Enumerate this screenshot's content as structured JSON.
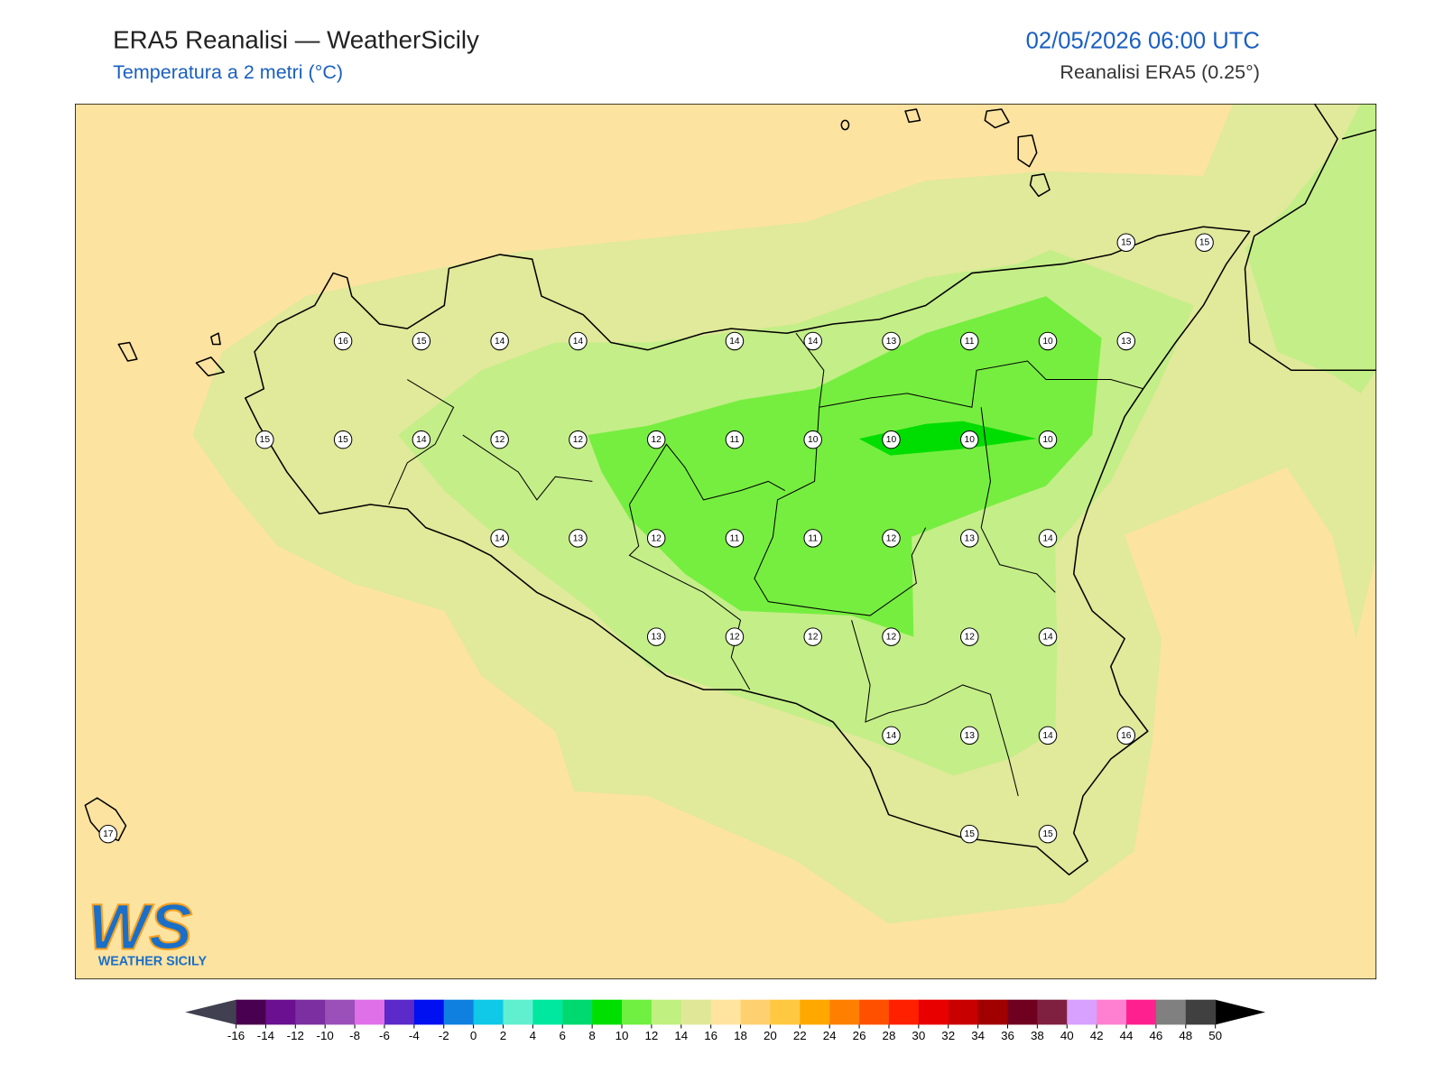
{
  "header": {
    "title": "ERA5 Reanalisi — WeatherSicily",
    "subtitle": "Temperatura a 2 metri (°C)",
    "datetime": "02/05/2026 06:00 UTC",
    "source": "Reanalisi ERA5 (0.25°)"
  },
  "map": {
    "stations": [
      15,
      15,
      16,
      15,
      14,
      14,
      14,
      14,
      13,
      11,
      10,
      13,
      15,
      15,
      14,
      12,
      12,
      12,
      11,
      10,
      10,
      10,
      10,
      14,
      13,
      12,
      11,
      11,
      12,
      13,
      14,
      13,
      12,
      12,
      12,
      12,
      14,
      14,
      13,
      14,
      16,
      17,
      15,
      15
    ]
  },
  "logo": {
    "mark": "WS",
    "name": "WEATHER SICILY"
  },
  "colorbar": {
    "ticks": [
      -16,
      -14,
      -12,
      -10,
      -8,
      -6,
      -4,
      -2,
      0,
      2,
      4,
      6,
      8,
      10,
      12,
      14,
      16,
      18,
      20,
      22,
      24,
      26,
      28,
      30,
      32,
      34,
      36,
      38,
      40,
      42,
      44,
      46,
      48,
      50
    ],
    "colors": [
      "#4a0050",
      "#6a1090",
      "#7b2fa0",
      "#9b4fb8",
      "#e070e8",
      "#5b2ac8",
      "#0010f0",
      "#1080e0",
      "#10c8e8",
      "#60f0d0",
      "#00e8a0",
      "#00d870",
      "#00e000",
      "#70f040",
      "#c0f080",
      "#e0e898",
      "#ffe4a0",
      "#ffd070",
      "#ffc840",
      "#ffa800",
      "#ff8000",
      "#ff5000",
      "#ff2000",
      "#e80000",
      "#c80000",
      "#a00000",
      "#700020",
      "#802040",
      "#d8a0ff",
      "#ff80d0",
      "#ff2090",
      "#808080",
      "#404040"
    ],
    "under": "#404050",
    "over": "#000000"
  }
}
